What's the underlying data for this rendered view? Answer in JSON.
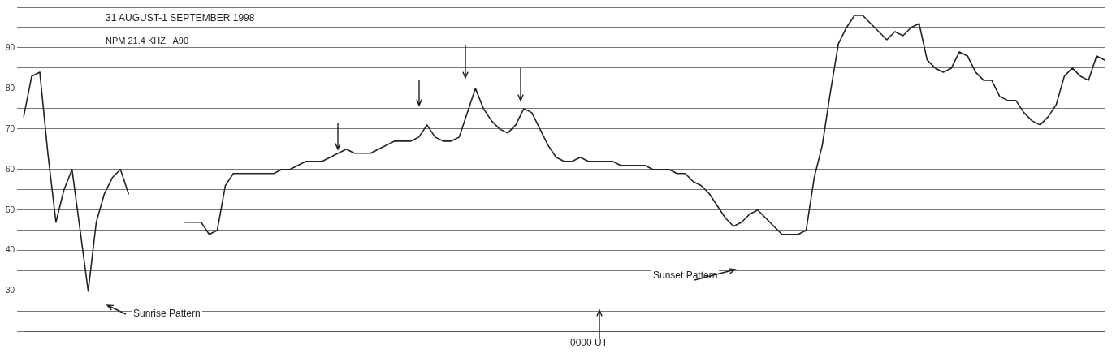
{
  "chart_data": {
    "type": "line",
    "title": "31 AUGUST-1 SEPTEMBER 1998",
    "subtitle": "NPM 21.4 KHZ   A90",
    "annotations": [
      "Sunrise Pattern",
      "Sunset Pattern",
      "0000 UT"
    ],
    "categories": [
      null,
      null,
      null,
      null,
      null,
      null,
      null,
      null,
      null,
      null,
      null,
      null,
      null,
      null,
      null,
      null,
      null,
      null,
      null,
      null,
      null,
      null,
      null,
      null,
      null,
      null,
      null,
      null,
      null,
      null,
      null,
      null,
      null,
      null,
      null,
      null,
      null,
      null,
      null,
      null,
      null,
      null,
      null,
      null,
      null,
      null,
      null,
      null,
      null,
      null,
      null,
      null,
      null,
      null,
      null,
      null,
      null,
      null,
      null,
      null,
      null,
      null,
      null,
      null,
      null,
      null,
      null,
      null,
      null,
      null,
      null,
      null,
      null,
      null,
      null,
      null,
      null,
      null,
      null,
      null,
      null,
      null,
      null,
      null,
      null,
      null,
      null,
      null,
      null,
      null,
      null,
      null,
      null,
      null,
      null,
      null,
      null,
      null,
      null,
      null,
      null,
      null,
      null,
      null,
      null,
      null,
      null,
      null,
      null,
      null,
      null,
      null,
      null,
      null,
      null,
      null,
      null,
      null,
      null,
      null,
      null,
      null,
      null,
      null,
      null,
      null,
      null,
      null,
      null,
      null,
      null,
      null,
      null,
      null,
      null
    ],
    "series": [
      {
        "color": "#222222",
        "values": [
          73,
          83,
          84,
          64,
          47,
          55,
          60,
          45,
          30,
          47,
          54,
          58,
          60,
          54,
          null,
          null,
          null,
          null,
          null,
          null,
          null,
          null,
          null,
          null,
          null,
          null,
          null,
          null,
          null,
          null,
          null,
          null,
          null,
          null,
          null,
          null,
          null,
          null,
          null,
          null,
          null,
          null,
          null,
          null,
          null,
          null,
          null,
          null,
          null,
          null,
          null,
          null,
          null,
          null,
          null,
          null,
          null,
          null,
          null,
          null,
          null,
          null,
          null,
          null,
          null,
          null,
          null,
          null,
          null,
          null,
          null,
          null,
          null,
          null,
          null,
          null,
          null,
          null,
          null,
          null,
          null,
          null,
          null,
          null,
          null,
          null,
          null,
          null,
          null,
          null,
          null,
          null,
          null,
          null,
          null,
          null,
          null,
          null,
          null,
          null,
          null,
          null,
          null,
          null,
          null,
          null,
          null,
          null,
          null,
          null,
          null,
          null,
          null,
          null,
          null,
          null,
          null,
          null,
          null,
          null,
          null,
          null,
          null,
          null,
          null,
          null,
          null,
          null,
          null,
          null,
          null,
          null,
          null,
          null,
          null
        ]
      },
      {
        "color": "#222222",
        "values": [
          null,
          null,
          null,
          null,
          null,
          null,
          null,
          null,
          null,
          null,
          null,
          null,
          null,
          null,
          null,
          null,
          null,
          null,
          null,
          null,
          47,
          47,
          47,
          44,
          45,
          56,
          59,
          59,
          59,
          59,
          59,
          59,
          60,
          60,
          61,
          62,
          62,
          62,
          63,
          64,
          65,
          64,
          64,
          64,
          65,
          66,
          67,
          67,
          67,
          68,
          71,
          68,
          67,
          67,
          68,
          74,
          80,
          75,
          72,
          70,
          69,
          71,
          75,
          74,
          70,
          66,
          63,
          62,
          62,
          63,
          62,
          62,
          62,
          62,
          61,
          61,
          61,
          61,
          60,
          60,
          60,
          59,
          59,
          57,
          56,
          54,
          51,
          48,
          46,
          47,
          49,
          50,
          48,
          46,
          44,
          44,
          44,
          45,
          58,
          66,
          79,
          91,
          95,
          98,
          98,
          96,
          94,
          92,
          94,
          93,
          95,
          96,
          87,
          85,
          84,
          85,
          89,
          88,
          84,
          82,
          82,
          78,
          77,
          77,
          74,
          72,
          71,
          73,
          76,
          83,
          85,
          83,
          82,
          88,
          87
        ]
      }
    ],
    "ylim": [
      20,
      100
    ],
    "yticks": [
      {
        "value": 20,
        "label": null
      },
      {
        "value": 25,
        "label": null
      },
      30,
      {
        "value": 35,
        "label": null
      },
      40,
      {
        "value": 45,
        "label": null
      },
      50,
      {
        "value": 55,
        "label": null
      },
      60,
      {
        "value": 65,
        "label": null
      },
      70,
      {
        "value": 75,
        "label": null
      },
      80,
      {
        "value": 85,
        "label": null
      },
      90,
      {
        "value": 95,
        "label": null
      },
      {
        "value": 100,
        "label": null
      }
    ],
    "grid": "y",
    "marker": "none",
    "line_style": "solid"
  }
}
